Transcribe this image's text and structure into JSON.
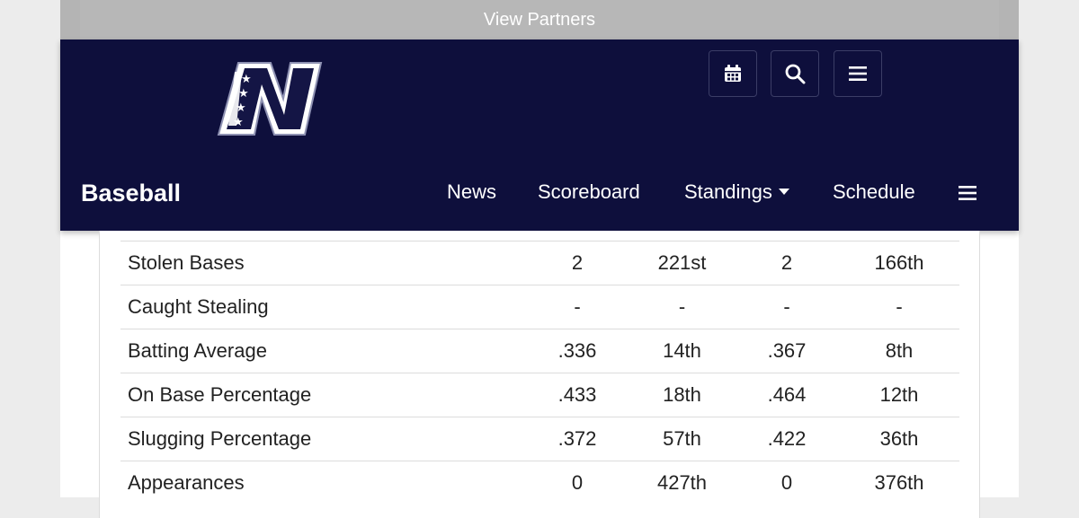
{
  "partners": {
    "label": "View Partners"
  },
  "header": {
    "logo_icon": "n-stars-logo",
    "buttons": [
      {
        "name": "calendar-icon"
      },
      {
        "name": "search-icon"
      },
      {
        "name": "menu-icon"
      }
    ]
  },
  "nav": {
    "title": "Baseball",
    "items": [
      {
        "label": "News"
      },
      {
        "label": "Scoreboard"
      },
      {
        "label": "Standings",
        "has_dropdown": true
      },
      {
        "label": "Schedule"
      }
    ],
    "more_icon": "hamburger-icon"
  },
  "stats": {
    "rows": [
      {
        "stat": "Stolen Bases",
        "value1": "2",
        "rank1": "221st",
        "value2": "2",
        "rank2": "166th"
      },
      {
        "stat": "Caught Stealing",
        "value1": "-",
        "rank1": "-",
        "value2": "-",
        "rank2": "-"
      },
      {
        "stat": "Batting Average",
        "value1": ".336",
        "rank1": "14th",
        "value2": ".367",
        "rank2": "8th"
      },
      {
        "stat": "On Base Percentage",
        "value1": ".433",
        "rank1": "18th",
        "value2": ".464",
        "rank2": "12th"
      },
      {
        "stat": "Slugging Percentage",
        "value1": ".372",
        "rank1": "57th",
        "value2": ".422",
        "rank2": "36th"
      },
      {
        "stat": "Appearances",
        "value1": "0",
        "rank1": "427th",
        "value2": "0",
        "rank2": "376th"
      }
    ]
  },
  "colors": {
    "navy": "#0e0f3c",
    "partners_bar": "#b7b7b7",
    "text": "#222222"
  }
}
